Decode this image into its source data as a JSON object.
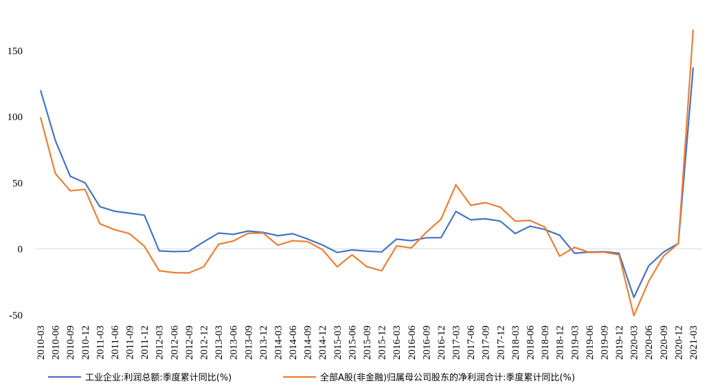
{
  "chart_data": {
    "type": "line",
    "title": "",
    "xlabel": "",
    "ylabel": "",
    "ylim": [
      -50,
      170
    ],
    "yticks": [
      -50,
      0,
      50,
      100,
      150
    ],
    "grid": false,
    "legend_position": "bottom",
    "categories": [
      "2010-03",
      "2010-06",
      "2010-09",
      "2010-12",
      "2011-03",
      "2011-06",
      "2011-09",
      "2011-12",
      "2012-03",
      "2012-06",
      "2012-09",
      "2012-12",
      "2013-03",
      "2013-06",
      "2013-09",
      "2013-12",
      "2014-03",
      "2014-06",
      "2014-09",
      "2014-12",
      "2015-03",
      "2015-06",
      "2015-09",
      "2015-12",
      "2016-03",
      "2016-06",
      "2016-09",
      "2016-12",
      "2017-03",
      "2017-06",
      "2017-09",
      "2017-12",
      "2018-03",
      "2018-06",
      "2018-09",
      "2018-12",
      "2019-03",
      "2019-06",
      "2019-09",
      "2019-12",
      "2020-03",
      "2020-06",
      "2020-09",
      "2020-12",
      "2021-03"
    ],
    "series": [
      {
        "name": "工业企业:利润总额:季度累计同比(%)",
        "color": "#4472C4",
        "values": [
          120,
          82,
          55,
          50,
          32,
          28.5,
          27,
          25.5,
          -1.5,
          -2,
          -1.8,
          5.3,
          12,
          11,
          13.5,
          12.5,
          10,
          11.5,
          7.5,
          3,
          -2.7,
          -0.8,
          -1.7,
          -2.3,
          7.4,
          6.2,
          8.4,
          8.5,
          28.3,
          22,
          22.8,
          21,
          11.6,
          17.2,
          14.7,
          10.3,
          -3.3,
          -2.4,
          -2.1,
          -3.3,
          -36.7,
          -12.8,
          -2.4,
          4.1,
          137.3
        ]
      },
      {
        "name": "全部A股(非金融)归属母公司股东的净利润合计:季度累计同比(%)",
        "color": "#ED7D31",
        "values": [
          99.5,
          57,
          44,
          45,
          19,
          14.5,
          11.5,
          2,
          -16.5,
          -18,
          -18.2,
          -13.5,
          3.5,
          6,
          11.8,
          12,
          2.8,
          6.2,
          5.5,
          -0.5,
          -13.5,
          -4.5,
          -13.5,
          -16.5,
          2.2,
          0.8,
          12.5,
          22.5,
          48.5,
          33,
          35,
          31.5,
          21,
          21.5,
          16.5,
          -5.5,
          1.2,
          -2.7,
          -2.5,
          -4.5,
          -50.5,
          -24.5,
          -5.5,
          4.1,
          166
        ]
      }
    ]
  }
}
